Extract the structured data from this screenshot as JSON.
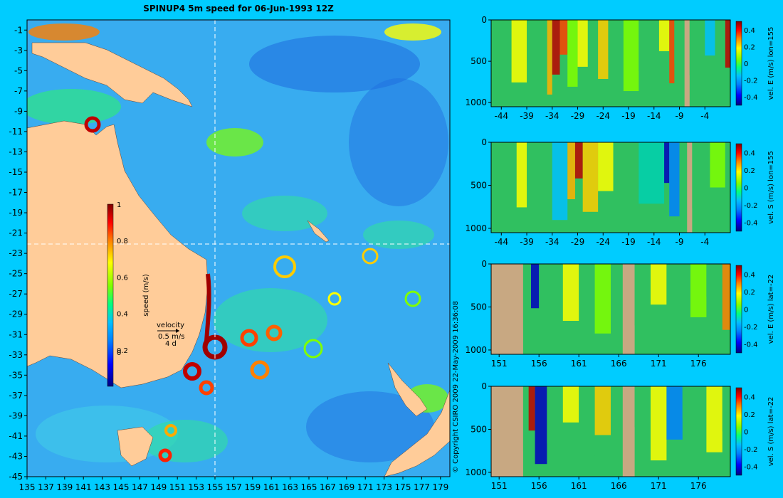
{
  "colors": {
    "background": "#00ccff",
    "land_map": "#ffcc99",
    "land_section": "#c8a882",
    "colormap": [
      "#000080",
      "#0000ff",
      "#0080ff",
      "#00bfff",
      "#00ff80",
      "#80ff00",
      "#ffff00",
      "#ff8000",
      "#ff0000",
      "#800000"
    ]
  },
  "map": {
    "title": "SPINUP4 5m speed for 06-Jun-1993 12Z",
    "x_ticks": [
      "135",
      "137",
      "139",
      "141",
      "143",
      "145",
      "147",
      "149",
      "151",
      "153",
      "155",
      "157",
      "159",
      "161",
      "163",
      "165",
      "167",
      "169",
      "171",
      "173",
      "175",
      "177",
      "179"
    ],
    "y_ticks": [
      "-1",
      "-3",
      "-5",
      "-7",
      "-9",
      "-11",
      "-13",
      "-15",
      "-17",
      "-19",
      "-21",
      "-23",
      "-25",
      "-27",
      "-29",
      "-31",
      "-33",
      "-35",
      "-37",
      "-39",
      "-41",
      "-43",
      "-45"
    ],
    "colorbar": {
      "label": "speed (m/s)",
      "ticks": [
        "1",
        "0.8",
        "0.6",
        "0.4",
        "0.2",
        "0"
      ]
    },
    "velocity_legend": {
      "title": "velocity",
      "speed": "0.5 m/s",
      "duration": "4 d"
    },
    "copyright": "© Copyright CSIRO 2009   22-May-2009 16:36:08"
  },
  "chart_data": [
    {
      "type": "heatmap",
      "title": "SPINUP4 5m speed for 06-Jun-1993 12Z",
      "xlabel": "",
      "ylabel": "",
      "xlim": [
        135,
        180
      ],
      "ylim": [
        -45,
        0
      ],
      "x_ticks": [
        135,
        137,
        139,
        141,
        143,
        145,
        147,
        149,
        151,
        153,
        155,
        157,
        159,
        161,
        163,
        165,
        167,
        169,
        171,
        173,
        175,
        177,
        179
      ],
      "y_ticks": [
        -1,
        -3,
        -5,
        -7,
        -9,
        -11,
        -13,
        -15,
        -17,
        -19,
        -21,
        -23,
        -25,
        -27,
        -29,
        -31,
        -33,
        -35,
        -37,
        -39,
        -41,
        -43,
        -45
      ],
      "colorbar_label": "speed (m/s)",
      "colorbar_range": [
        0,
        1
      ],
      "section_lines": {
        "lon": 155,
        "lat": -22
      }
    },
    {
      "type": "heatmap",
      "colorbar_label": "vel. E (m/s) lon=155",
      "x_ticks": [
        "-44",
        "-39",
        "-34",
        "-29",
        "-24",
        "-19",
        "-14",
        "-9",
        "-4"
      ],
      "y_ticks": [
        "0",
        "500",
        "1000"
      ],
      "colorbar_ticks": [
        "0.4",
        "0.2",
        "0",
        "-0.2",
        "-0.4"
      ],
      "xlim": [
        -46,
        1
      ],
      "ylim": [
        1050,
        0
      ],
      "colorbar_range": [
        -0.5,
        0.5
      ]
    },
    {
      "type": "heatmap",
      "colorbar_label": "vel. S (m/s) lon=155",
      "x_ticks": [
        "-44",
        "-39",
        "-34",
        "-29",
        "-24",
        "-19",
        "-14",
        "-9",
        "-4"
      ],
      "y_ticks": [
        "0",
        "500",
        "1000"
      ],
      "colorbar_ticks": [
        "0.4",
        "0.2",
        "0",
        "-0.2",
        "-0.4"
      ],
      "xlim": [
        -46,
        1
      ],
      "ylim": [
        1050,
        0
      ],
      "colorbar_range": [
        -0.5,
        0.5
      ]
    },
    {
      "type": "heatmap",
      "colorbar_label": "vel. E (m/s) lat=-22",
      "x_ticks": [
        "151",
        "156",
        "161",
        "166",
        "171",
        "176"
      ],
      "y_ticks": [
        "0",
        "500",
        "1000"
      ],
      "colorbar_ticks": [
        "0.4",
        "0.2",
        "0",
        "-0.2",
        "-0.4"
      ],
      "xlim": [
        150,
        180
      ],
      "ylim": [
        1050,
        0
      ],
      "colorbar_range": [
        -0.5,
        0.5
      ]
    },
    {
      "type": "heatmap",
      "colorbar_label": "vel. S (m/s) lat=-22",
      "x_ticks": [
        "151",
        "156",
        "161",
        "166",
        "171",
        "176"
      ],
      "y_ticks": [
        "0",
        "500",
        "1000"
      ],
      "colorbar_ticks": [
        "0.4",
        "0.2",
        "0",
        "-0.2",
        "-0.4"
      ],
      "xlim": [
        150,
        180
      ],
      "ylim": [
        1050,
        0
      ],
      "colorbar_range": [
        -0.5,
        0.5
      ]
    }
  ]
}
